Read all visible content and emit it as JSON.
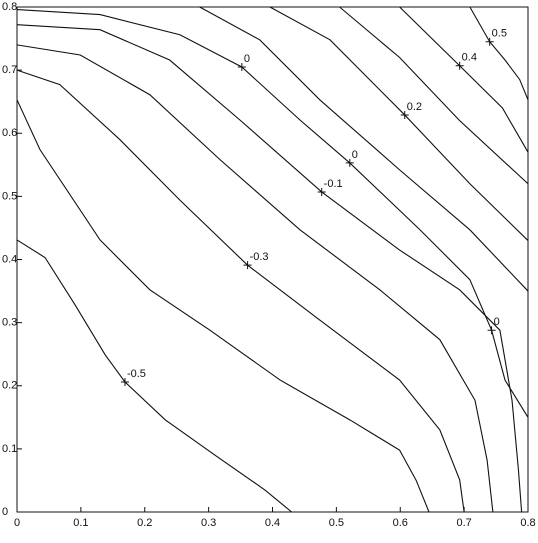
{
  "chart_data": {
    "type": "contour",
    "xlim": [
      0,
      0.8
    ],
    "ylim": [
      0,
      0.8
    ],
    "xticks": [
      0,
      0.1,
      0.2,
      0.3,
      0.4,
      0.5,
      0.6,
      0.7,
      0.8
    ],
    "yticks": [
      0,
      0.1,
      0.2,
      0.3,
      0.4,
      0.5,
      0.6,
      0.7,
      0.8
    ],
    "color": "#111111",
    "contours": [
      {
        "x": [
          0,
          0.044,
          0.091,
          0.138,
          0.169,
          0.232,
          0.31,
          0.388,
          0.43
        ],
        "y": [
          0.431,
          0.403,
          0.328,
          0.249,
          0.206,
          0.146,
          0.09,
          0.035,
          0
        ]
      },
      {
        "x": [
          0,
          0.036,
          0.13,
          0.208,
          0.302,
          0.412,
          0.521,
          0.599,
          0.625,
          0.645
        ],
        "y": [
          0.653,
          0.574,
          0.431,
          0.352,
          0.288,
          0.209,
          0.146,
          0.098,
          0.05,
          0
        ]
      },
      {
        "x": [
          0,
          0.067,
          0.161,
          0.255,
          0.361,
          0.474,
          0.599,
          0.662,
          0.693,
          0.7
        ],
        "y": [
          0.7,
          0.677,
          0.59,
          0.494,
          0.391,
          0.304,
          0.209,
          0.13,
          0.051,
          0
        ]
      },
      {
        "x": [
          0,
          0.099,
          0.208,
          0.318,
          0.443,
          0.568,
          0.662,
          0.717,
          0.736,
          0.745
        ],
        "y": [
          0.74,
          0.724,
          0.661,
          0.558,
          0.447,
          0.352,
          0.273,
          0.177,
          0.082,
          0
        ]
      },
      {
        "x": [
          0,
          0.13,
          0.239,
          0.349,
          0.477,
          0.599,
          0.693,
          0.756,
          0.775,
          0.785,
          0.79
        ],
        "y": [
          0.772,
          0.764,
          0.716,
          0.621,
          0.507,
          0.415,
          0.352,
          0.288,
          0.177,
          0.067,
          0
        ]
      },
      {
        "x": [
          0,
          0.13,
          0.255,
          0.352,
          0.443,
          0.521,
          0.631,
          0.709,
          0.743,
          0.764,
          0.8
        ],
        "y": [
          0.796,
          0.788,
          0.756,
          0.705,
          0.621,
          0.553,
          0.447,
          0.368,
          0.288,
          0.209,
          0.15
        ]
      },
      {
        "x": [
          0.286,
          0.38,
          0.474,
          0.599,
          0.709,
          0.8
        ],
        "y": [
          0.8,
          0.748,
          0.653,
          0.542,
          0.447,
          0.35
        ]
      },
      {
        "x": [
          0.396,
          0.49,
          0.607,
          0.709,
          0.8
        ],
        "y": [
          0.8,
          0.748,
          0.629,
          0.52,
          0.43
        ]
      },
      {
        "x": [
          0.505,
          0.599,
          0.693,
          0.8
        ],
        "y": [
          0.8,
          0.72,
          0.62,
          0.52
        ]
      },
      {
        "x": [
          0.599,
          0.693,
          0.76,
          0.8
        ],
        "y": [
          0.8,
          0.707,
          0.64,
          0.57
        ]
      },
      {
        "x": [
          0.709,
          0.74,
          0.764,
          0.787,
          0.8
        ],
        "y": [
          0.8,
          0.745,
          0.716,
          0.685,
          0.653
        ]
      }
    ],
    "labels": [
      {
        "x": 0.169,
        "y": 0.206,
        "value": -0.5
      },
      {
        "x": 0.361,
        "y": 0.391,
        "value": -0.3
      },
      {
        "x": 0.477,
        "y": 0.507,
        "value": -0.1
      },
      {
        "x": 0.352,
        "y": 0.705,
        "value": 0
      },
      {
        "x": 0.521,
        "y": 0.553,
        "value": 0
      },
      {
        "x": 0.743,
        "y": 0.288,
        "value": 0
      },
      {
        "x": 0.607,
        "y": 0.629,
        "value": 0.2
      },
      {
        "x": 0.693,
        "y": 0.707,
        "value": 0.4
      },
      {
        "x": 0.74,
        "y": 0.745,
        "value": 0.5
      }
    ]
  }
}
